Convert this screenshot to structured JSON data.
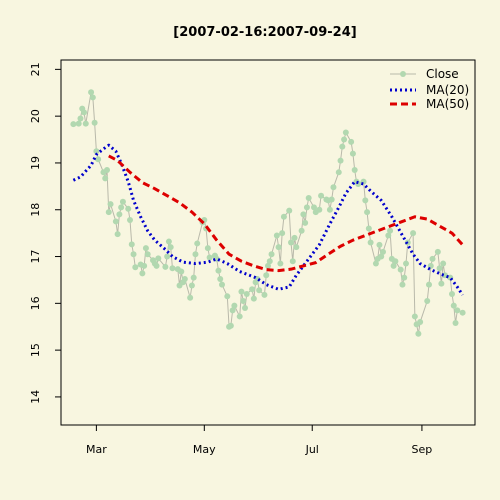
{
  "colors": {
    "background": "#f8f6e0",
    "axis": "#000000",
    "close_line": "#b9b9aa",
    "close_point": "#b2d8b0",
    "ma20": "#0000cc",
    "ma50": "#dd0000"
  },
  "chart_data": {
    "type": "line",
    "title": "[2007-02-16:2007-09-24]",
    "xlabel": "",
    "ylabel": "",
    "x_type": "date",
    "xlim": [
      "2007-02-09",
      "2007-10-01"
    ],
    "ylim": [
      13.4,
      21.2
    ],
    "x_ticks": [
      {
        "date": "2007-03-01",
        "label": "Mar"
      },
      {
        "date": "2007-05-01",
        "label": "May"
      },
      {
        "date": "2007-07-01",
        "label": "Jul"
      },
      {
        "date": "2007-09-01",
        "label": "Sep"
      }
    ],
    "y_ticks": [
      14,
      15,
      16,
      17,
      18,
      19,
      20,
      21
    ],
    "grid": false,
    "legend_position": "top-right",
    "legend": [
      "Close",
      "MA(20)",
      "MA(50)"
    ],
    "series": [
      {
        "name": "Close",
        "style": "line-with-points",
        "points": [
          [
            "2007-02-16",
            19.83
          ],
          [
            "2007-02-19",
            19.84
          ],
          [
            "2007-02-20",
            19.95
          ],
          [
            "2007-02-21",
            20.16
          ],
          [
            "2007-02-22",
            20.08
          ],
          [
            "2007-02-23",
            19.84
          ],
          [
            "2007-02-26",
            20.51
          ],
          [
            "2007-02-27",
            20.4
          ],
          [
            "2007-02-28",
            19.86
          ],
          [
            "2007-03-01",
            19.25
          ],
          [
            "2007-03-02",
            19.08
          ],
          [
            "2007-03-05",
            18.8
          ],
          [
            "2007-03-06",
            18.67
          ],
          [
            "2007-03-07",
            18.85
          ],
          [
            "2007-03-08",
            17.95
          ],
          [
            "2007-03-09",
            18.12
          ],
          [
            "2007-03-12",
            17.75
          ],
          [
            "2007-03-13",
            17.48
          ],
          [
            "2007-03-14",
            17.9
          ],
          [
            "2007-03-15",
            18.05
          ],
          [
            "2007-03-16",
            18.17
          ],
          [
            "2007-03-19",
            18.02
          ],
          [
            "2007-03-20",
            17.78
          ],
          [
            "2007-03-21",
            17.26
          ],
          [
            "2007-03-22",
            17.05
          ],
          [
            "2007-03-23",
            16.77
          ],
          [
            "2007-03-26",
            16.83
          ],
          [
            "2007-03-27",
            16.64
          ],
          [
            "2007-03-28",
            16.8
          ],
          [
            "2007-03-29",
            17.18
          ],
          [
            "2007-03-30",
            17.05
          ],
          [
            "2007-04-02",
            16.92
          ],
          [
            "2007-04-03",
            16.85
          ],
          [
            "2007-04-04",
            16.8
          ],
          [
            "2007-04-05",
            16.96
          ],
          [
            "2007-04-09",
            16.78
          ],
          [
            "2007-04-10",
            17.0
          ],
          [
            "2007-04-11",
            17.32
          ],
          [
            "2007-04-12",
            17.2
          ],
          [
            "2007-04-13",
            16.75
          ],
          [
            "2007-04-16",
            16.73
          ],
          [
            "2007-04-17",
            16.38
          ],
          [
            "2007-04-18",
            16.68
          ],
          [
            "2007-04-19",
            16.45
          ],
          [
            "2007-04-20",
            16.52
          ],
          [
            "2007-04-23",
            16.12
          ],
          [
            "2007-04-24",
            16.38
          ],
          [
            "2007-04-25",
            16.55
          ],
          [
            "2007-04-26",
            17.05
          ],
          [
            "2007-04-27",
            17.28
          ],
          [
            "2007-04-30",
            17.73
          ],
          [
            "2007-05-01",
            17.78
          ],
          [
            "2007-05-02",
            17.6
          ],
          [
            "2007-05-03",
            17.18
          ],
          [
            "2007-05-04",
            16.98
          ],
          [
            "2007-05-07",
            17.02
          ],
          [
            "2007-05-08",
            16.95
          ],
          [
            "2007-05-09",
            16.7
          ],
          [
            "2007-05-10",
            16.52
          ],
          [
            "2007-05-11",
            16.4
          ],
          [
            "2007-05-14",
            16.15
          ],
          [
            "2007-05-15",
            15.5
          ],
          [
            "2007-05-16",
            15.52
          ],
          [
            "2007-05-17",
            15.85
          ],
          [
            "2007-05-18",
            15.95
          ],
          [
            "2007-05-21",
            15.72
          ],
          [
            "2007-05-22",
            16.25
          ],
          [
            "2007-05-23",
            16.05
          ],
          [
            "2007-05-24",
            15.9
          ],
          [
            "2007-05-25",
            16.2
          ],
          [
            "2007-05-28",
            16.3
          ],
          [
            "2007-05-29",
            16.1
          ],
          [
            "2007-05-30",
            16.45
          ],
          [
            "2007-05-31",
            16.52
          ],
          [
            "2007-06-01",
            16.28
          ],
          [
            "2007-06-04",
            16.18
          ],
          [
            "2007-06-05",
            16.6
          ],
          [
            "2007-06-06",
            16.8
          ],
          [
            "2007-06-07",
            16.9
          ],
          [
            "2007-06-08",
            17.05
          ],
          [
            "2007-06-11",
            17.45
          ],
          [
            "2007-06-12",
            17.2
          ],
          [
            "2007-06-13",
            16.85
          ],
          [
            "2007-06-14",
            17.5
          ],
          [
            "2007-06-15",
            17.85
          ],
          [
            "2007-06-18",
            17.98
          ],
          [
            "2007-06-19",
            17.3
          ],
          [
            "2007-06-20",
            16.9
          ],
          [
            "2007-06-21",
            17.4
          ],
          [
            "2007-06-22",
            17.2
          ],
          [
            "2007-06-25",
            17.55
          ],
          [
            "2007-06-26",
            17.9
          ],
          [
            "2007-06-27",
            17.72
          ],
          [
            "2007-06-28",
            18.05
          ],
          [
            "2007-06-29",
            18.25
          ],
          [
            "2007-07-02",
            18.05
          ],
          [
            "2007-07-03",
            17.95
          ],
          [
            "2007-07-05",
            18.0
          ],
          [
            "2007-07-06",
            18.3
          ],
          [
            "2007-07-09",
            18.22
          ],
          [
            "2007-07-10",
            18.2
          ],
          [
            "2007-07-11",
            18.0
          ],
          [
            "2007-07-12",
            18.22
          ],
          [
            "2007-07-13",
            18.48
          ],
          [
            "2007-07-16",
            18.8
          ],
          [
            "2007-07-17",
            19.05
          ],
          [
            "2007-07-18",
            19.35
          ],
          [
            "2007-07-19",
            19.5
          ],
          [
            "2007-07-20",
            19.65
          ],
          [
            "2007-07-23",
            19.45
          ],
          [
            "2007-07-24",
            19.2
          ],
          [
            "2007-07-25",
            18.85
          ],
          [
            "2007-07-26",
            18.6
          ],
          [
            "2007-07-27",
            18.55
          ],
          [
            "2007-07-30",
            18.6
          ],
          [
            "2007-07-31",
            18.2
          ],
          [
            "2007-08-01",
            17.95
          ],
          [
            "2007-08-02",
            17.6
          ],
          [
            "2007-08-03",
            17.3
          ],
          [
            "2007-08-06",
            16.85
          ],
          [
            "2007-08-07",
            16.95
          ],
          [
            "2007-08-08",
            17.25
          ],
          [
            "2007-08-09",
            17.0
          ],
          [
            "2007-08-10",
            17.1
          ],
          [
            "2007-08-13",
            17.45
          ],
          [
            "2007-08-14",
            17.55
          ],
          [
            "2007-08-15",
            16.95
          ],
          [
            "2007-08-16",
            16.8
          ],
          [
            "2007-08-17",
            16.9
          ],
          [
            "2007-08-20",
            16.72
          ],
          [
            "2007-08-21",
            16.4
          ],
          [
            "2007-08-22",
            16.55
          ],
          [
            "2007-08-23",
            16.85
          ],
          [
            "2007-08-24",
            17.3
          ],
          [
            "2007-08-27",
            17.5
          ],
          [
            "2007-08-28",
            15.72
          ],
          [
            "2007-08-29",
            15.55
          ],
          [
            "2007-08-30",
            15.35
          ],
          [
            "2007-08-31",
            15.6
          ],
          [
            "2007-09-04",
            16.05
          ],
          [
            "2007-09-05",
            16.4
          ],
          [
            "2007-09-06",
            16.8
          ],
          [
            "2007-09-07",
            16.95
          ],
          [
            "2007-09-10",
            17.1
          ],
          [
            "2007-09-11",
            16.75
          ],
          [
            "2007-09-12",
            16.42
          ],
          [
            "2007-09-13",
            16.85
          ],
          [
            "2007-09-14",
            16.6
          ],
          [
            "2007-09-17",
            16.55
          ],
          [
            "2007-09-18",
            16.2
          ],
          [
            "2007-09-19",
            15.95
          ],
          [
            "2007-09-20",
            15.58
          ],
          [
            "2007-09-21",
            15.85
          ],
          [
            "2007-09-24",
            15.8
          ]
        ]
      },
      {
        "name": "MA(20)",
        "style": "dotted",
        "points": [
          [
            "2007-02-16",
            18.63
          ],
          [
            "2007-02-20",
            18.7
          ],
          [
            "2007-02-26",
            18.95
          ],
          [
            "2007-03-01",
            19.18
          ],
          [
            "2007-03-05",
            19.3
          ],
          [
            "2007-03-08",
            19.38
          ],
          [
            "2007-03-12",
            19.25
          ],
          [
            "2007-03-15",
            19.0
          ],
          [
            "2007-03-19",
            18.6
          ],
          [
            "2007-03-22",
            18.2
          ],
          [
            "2007-03-26",
            17.85
          ],
          [
            "2007-03-30",
            17.55
          ],
          [
            "2007-04-03",
            17.35
          ],
          [
            "2007-04-09",
            17.15
          ],
          [
            "2007-04-13",
            17.0
          ],
          [
            "2007-04-19",
            16.88
          ],
          [
            "2007-04-26",
            16.85
          ],
          [
            "2007-05-03",
            16.88
          ],
          [
            "2007-05-08",
            16.95
          ],
          [
            "2007-05-14",
            16.85
          ],
          [
            "2007-05-21",
            16.68
          ],
          [
            "2007-05-30",
            16.55
          ],
          [
            "2007-06-05",
            16.4
          ],
          [
            "2007-06-12",
            16.3
          ],
          [
            "2007-06-18",
            16.35
          ],
          [
            "2007-06-22",
            16.6
          ],
          [
            "2007-06-28",
            16.9
          ],
          [
            "2007-07-05",
            17.25
          ],
          [
            "2007-07-11",
            17.7
          ],
          [
            "2007-07-16",
            18.05
          ],
          [
            "2007-07-20",
            18.35
          ],
          [
            "2007-07-25",
            18.6
          ],
          [
            "2007-07-30",
            18.55
          ],
          [
            "2007-08-03",
            18.4
          ],
          [
            "2007-08-09",
            18.2
          ],
          [
            "2007-08-15",
            17.85
          ],
          [
            "2007-08-21",
            17.45
          ],
          [
            "2007-08-27",
            17.05
          ],
          [
            "2007-08-31",
            16.85
          ],
          [
            "2007-09-06",
            16.72
          ],
          [
            "2007-09-12",
            16.62
          ],
          [
            "2007-09-17",
            16.55
          ],
          [
            "2007-09-21",
            16.35
          ],
          [
            "2007-09-24",
            16.18
          ]
        ]
      },
      {
        "name": "MA(50)",
        "style": "dashed",
        "points": [
          [
            "2007-03-08",
            19.15
          ],
          [
            "2007-03-13",
            19.05
          ],
          [
            "2007-03-20",
            18.8
          ],
          [
            "2007-03-27",
            18.58
          ],
          [
            "2007-04-03",
            18.45
          ],
          [
            "2007-04-10",
            18.3
          ],
          [
            "2007-04-17",
            18.15
          ],
          [
            "2007-04-24",
            17.95
          ],
          [
            "2007-05-01",
            17.7
          ],
          [
            "2007-05-08",
            17.35
          ],
          [
            "2007-05-15",
            17.05
          ],
          [
            "2007-05-22",
            16.9
          ],
          [
            "2007-05-29",
            16.8
          ],
          [
            "2007-06-05",
            16.72
          ],
          [
            "2007-06-12",
            16.7
          ],
          [
            "2007-06-19",
            16.73
          ],
          [
            "2007-06-26",
            16.8
          ],
          [
            "2007-07-03",
            16.87
          ],
          [
            "2007-07-10",
            17.05
          ],
          [
            "2007-07-17",
            17.22
          ],
          [
            "2007-07-24",
            17.35
          ],
          [
            "2007-07-31",
            17.45
          ],
          [
            "2007-08-07",
            17.55
          ],
          [
            "2007-08-14",
            17.65
          ],
          [
            "2007-08-21",
            17.75
          ],
          [
            "2007-08-28",
            17.85
          ],
          [
            "2007-09-04",
            17.8
          ],
          [
            "2007-09-11",
            17.65
          ],
          [
            "2007-09-18",
            17.5
          ],
          [
            "2007-09-24",
            17.25
          ]
        ]
      }
    ]
  }
}
